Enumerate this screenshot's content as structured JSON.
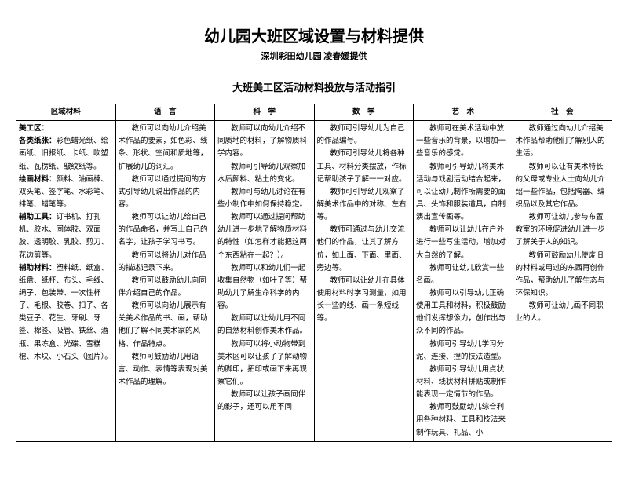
{
  "title": "幼儿园大班区域设置与材料提供",
  "subtitle": "深圳彩田幼儿园 凌春媛提供",
  "section": "大班美工区活动材料投放与活动指引",
  "headers": [
    "区域材料",
    "语　言",
    "科　学",
    "数　学",
    "艺　术",
    "社　会"
  ],
  "col0": {
    "h1": "美工区：",
    "h2": "各类纸张：",
    "t2": "彩色蜡光纸、绘画纸、旧报纸、卡纸、吹塑纸、瓦楞纸、皱纹纸等。",
    "h3": "绘画材料：",
    "t3": "颜料、油画棒、双头笔、签字笔、水彩笔、排笔、蜡笔等。",
    "h4": "辅助工具：",
    "t4": "订书机、打孔机、胶水、固体胶、双面胶、透明胶、乳胶、剪刀、花边剪等。",
    "h5": "辅助材料：",
    "t5": "塑料纸、纸盒、纸盘、纸杯、布头、毛线、绳子、包装带、一次性杯子、毛根、胶卷、扣子、各类豆子、花生、牙刷、牙签、棉签、吸管、铁丝、酒瓶、果冻盒、光碟、雪糕棍、木块、小石头（图片）。"
  },
  "col1": {
    "p1": "教师可以向幼儿介绍美术作品的要素，如色彩、线条、形状、空间和质地等，扩展幼儿的词汇。",
    "p2": "教师可以通过提问的方式引导幼儿说出作品的内容。",
    "p3": "教师可以让幼儿给自己的作品命名，并写上自己的名字，让孩子学习书写。",
    "p4": "教师可以将幼儿对作品的描述记录下来。",
    "p5": "教师可以鼓励幼儿向同伴介绍自己的作品。",
    "p6": "教师可以向幼儿展示有关美术作品的书、画，帮助他们了解不同美术家的风格、作品特点。",
    "p7": "教师可鼓励幼儿用语言、动作、表情等表现对美术作品的理解。"
  },
  "col2": {
    "p1": "教师可以向幼儿介绍不同质地的材料，了解物质科学内容。",
    "p2": "教师可引导幼儿观察加水后颜料、粘土的变化。",
    "p3": "教师可与幼儿讨论在有些小制作中如何保持稳定。",
    "p4": "教师可以通过提问帮助幼儿进一步地了解物质材料的特性（如怎样才能把这两个东西粘在一起？）。",
    "p5": "教师可以和幼儿们一起收集自然物（如叶子等）帮助幼儿了解生命科学的内容。",
    "p6": "教师可以让幼儿用不同的自然材料创作美术作品。",
    "p7": "教师可以将小动物带到美术区可以让孩子了解动物的脚印，拓印或画下来再观察它们。",
    "p8": "教师可以让孩子画同伴的影子，还可以用不同"
  },
  "col3": {
    "p1": "教师可引导幼儿为自己的作品编号。",
    "p2": "教师可引导幼儿将各种工具、材料分类摆放，作标记帮助孩子了解一一对应。",
    "p3": "教师可引导幼儿观察了解美术作品中的对称、左右等。",
    "p4": "教师可通过与幼儿交流他们的作品，让其了解方位，如上面、下面、里面、旁边等。",
    "p5": "教师可以让幼儿在具体使用材料时学习测量，如用长一些的线、画一条短线等。"
  },
  "col4": {
    "p1": "教师可在美术活动中放一些音乐的背景，以增加一些音乐的感觉。",
    "p2": "教师可引导幼儿将美术活动与戏剧活动结合起来，可以让幼儿制作所需要的面具、头饰和服装道具，自制演出宣传画等。",
    "p3": "教师可以让幼儿在户外进行一些写生活动，增加对大自然的了解。",
    "p4": "教师可让幼儿欣赏一些名画。",
    "p5": "教师可以引导幼儿正确使用工具和材料，积极鼓励他们发挥想像力，创作出与众不同的作品。",
    "p6": "教师可引导幼儿学习分泥、连接、捏的技法造型。",
    "p7": "教师可引导幼儿用点状材料、线状材料拼贴或制作能表现一定情节的作品。",
    "p8": "教师可鼓励幼儿综合利用各种材料、工具和技法来制作玩具、礼品、小"
  },
  "col5": {
    "p1": "教师通过向幼儿介绍美术作品帮助他们了解别人的生活。",
    "p2": "教师可以让有美术特长的父母或专业人士向幼儿介绍一些作品，包括陶器、编织品以及其它作品。",
    "p3": "教师可让幼儿参与布置教室的环境促进幼儿进一步了解关于人的知识。",
    "p4": "教师可鼓励幼儿使废旧的材料或用过的东西再创作作品，帮助幼儿了解生态与环保知识。",
    "p5": "教师可让幼儿画不同职业的人。"
  }
}
